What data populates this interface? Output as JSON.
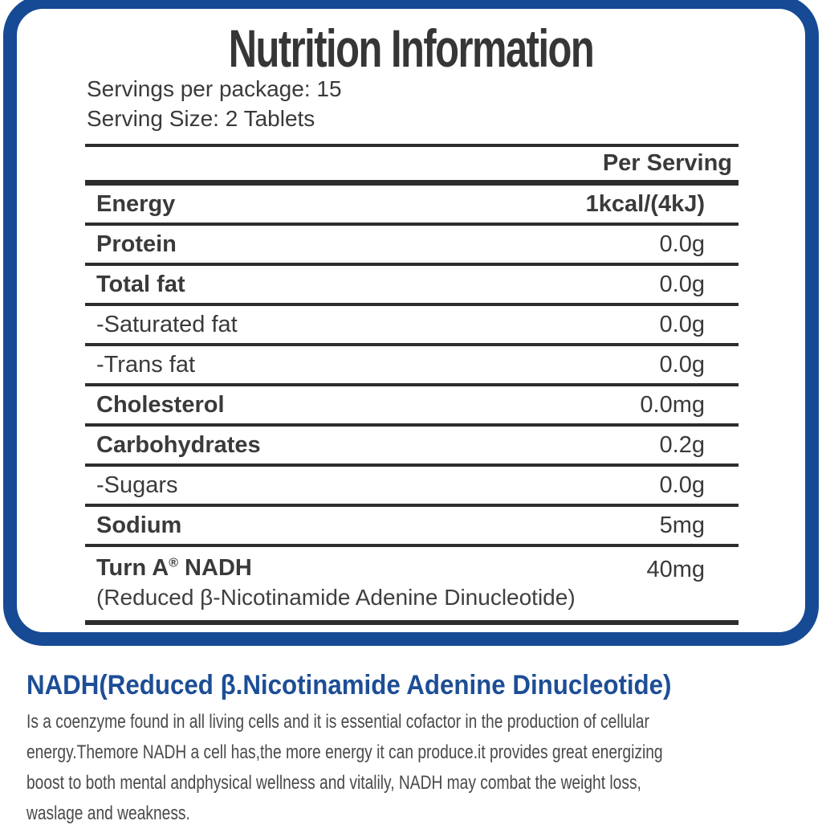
{
  "label": {
    "title": "Nutrition Information",
    "servings_per_package": "Servings per package: 15",
    "serving_size": "Serving Size: 2 Tablets",
    "border_color": "#164a94",
    "table": {
      "value_header": "Per Serving",
      "rows": [
        {
          "name": "Energy",
          "value": "1kcal/(4kJ)"
        },
        {
          "name": "Protein",
          "value": "0.0g"
        },
        {
          "name": "Total fat",
          "value": "0.0g"
        },
        {
          "name": "-Saturated fat",
          "value": "0.0g"
        },
        {
          "name": "-Trans fat",
          "value": "0.0g"
        },
        {
          "name": "Cholesterol",
          "value": "0.0mg"
        },
        {
          "name": "Carbohydrates",
          "value": "0.2g"
        },
        {
          "name": "-Sugars",
          "value": "0.0g"
        },
        {
          "name": "Sodium",
          "value": "5mg"
        },
        {
          "name_main": "Turn A",
          "trademark": "®",
          "name_rest": " NADH",
          "subname": "(Reduced β-Nicotinamide Adenine Dinucleotide)",
          "value": "40mg"
        }
      ]
    }
  },
  "description": {
    "heading": "NADH(Reduced β.Nicotinamide Adenine Dinucleotide)",
    "heading_color": "#1d4e96",
    "body": "Is a coenzyme found in all living cells and it is essential cofactor in the production of cellular\nenergy.Themore NADH a cell has,the more energy it can produce.it provides great energizing\nboost to both mental andphysical wellness and vitalily, NADH may combat the weight loss,\nwaslage and weakness."
  }
}
